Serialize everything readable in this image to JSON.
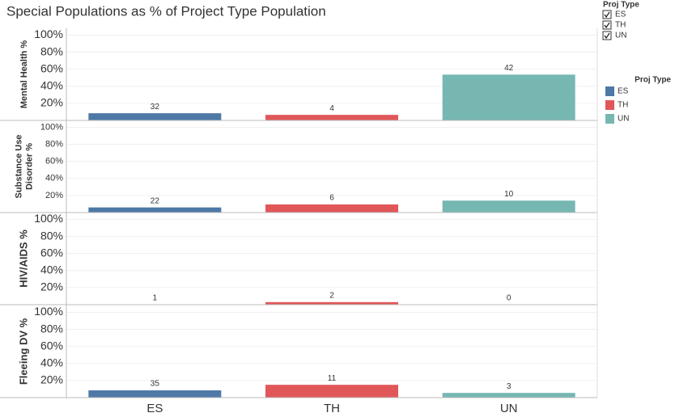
{
  "title": "Special Populations as % of Project Type Population",
  "categories": [
    "ES",
    "TH",
    "UN"
  ],
  "filter": {
    "title": "Proj Type",
    "items": [
      "ES",
      "TH",
      "UN"
    ]
  },
  "legend": {
    "title": "Proj Type",
    "items": [
      {
        "name": "ES",
        "color": "#4e79a7"
      },
      {
        "name": "TH",
        "color": "#e15759"
      },
      {
        "name": "UN",
        "color": "#76b7b2"
      }
    ]
  },
  "chart_data": [
    {
      "type": "bar",
      "y_label": [
        "Mental Health %"
      ],
      "values": [
        8.4,
        6.5,
        53.7
      ],
      "counts": [
        32,
        4,
        42
      ],
      "ylim": [
        0,
        108
      ],
      "yticks": [
        {
          "value": 20,
          "label": "20%"
        },
        {
          "value": 40,
          "label": "40%"
        },
        {
          "value": 60,
          "label": "60%"
        },
        {
          "value": 80,
          "label": "80%"
        },
        {
          "value": 100,
          "label": "100%"
        }
      ],
      "grid": true
    },
    {
      "type": "bar",
      "y_label": [
        "Substance Use",
        "Disorder %"
      ],
      "values": [
        6,
        9.5,
        14
      ],
      "counts": [
        22,
        6,
        10
      ],
      "ylim": [
        0,
        108
      ],
      "yticks": [
        {
          "value": 20,
          "label": "20%"
        },
        {
          "value": 40,
          "label": "40%"
        },
        {
          "value": 60,
          "label": "60%"
        },
        {
          "value": 80,
          "label": "80%"
        },
        {
          "value": 100,
          "label": "100%"
        }
      ],
      "grid": true
    },
    {
      "type": "bar",
      "y_label": [
        "HIV/AIDS %"
      ],
      "values": [
        0.3,
        3,
        0
      ],
      "counts": [
        1,
        2,
        0
      ],
      "ylim": [
        0,
        108
      ],
      "yticks": [
        {
          "value": 20,
          "label": "20%"
        },
        {
          "value": 40,
          "label": "40%"
        },
        {
          "value": 60,
          "label": "60%"
        },
        {
          "value": 80,
          "label": "80%"
        },
        {
          "value": 100,
          "label": "100%"
        }
      ],
      "grid": true
    },
    {
      "type": "bar",
      "y_label": [
        "Fleeing DV %"
      ],
      "values": [
        8.5,
        15,
        5.5
      ],
      "counts": [
        35,
        11,
        3
      ],
      "ylim": [
        0,
        108
      ],
      "yticks": [
        {
          "value": 20,
          "label": "20%"
        },
        {
          "value": 40,
          "label": "40%"
        },
        {
          "value": 60,
          "label": "60%"
        },
        {
          "value": 80,
          "label": "80%"
        },
        {
          "value": 100,
          "label": "100%"
        }
      ],
      "grid": true
    }
  ]
}
